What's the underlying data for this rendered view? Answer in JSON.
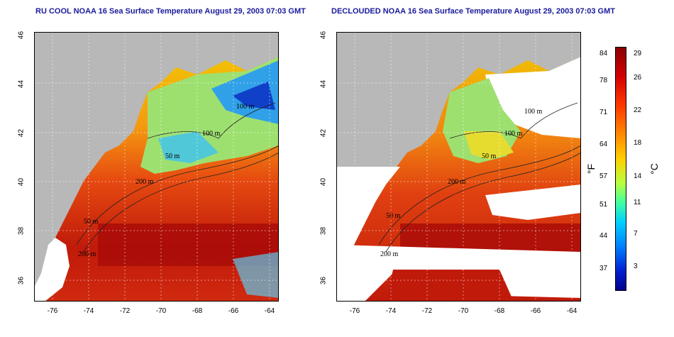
{
  "left_panel": {
    "title": "RU COOL NOAA 16 Sea Surface Temperature August 29, 2003 07:03 GMT"
  },
  "right_panel": {
    "title": "DECLOUDED NOAA 16 Sea Surface Temperature August 29, 2003 07:03 GMT"
  },
  "axes": {
    "lat_ticks": [
      "46",
      "44",
      "42",
      "40",
      "38",
      "36"
    ],
    "lon_ticks": [
      "-76",
      "-74",
      "-72",
      "-70",
      "-68",
      "-66",
      "-64"
    ]
  },
  "contour_labels": {
    "left": [
      "100 m",
      "100 m",
      "50 m",
      "200 m",
      "50 m",
      "200 m"
    ],
    "right": [
      "100 m",
      "100 m",
      "50 m",
      "200 m",
      "50 m",
      "200 m"
    ]
  },
  "colorbar": {
    "fahrenheit_label": "°F",
    "celsius_label": "°C",
    "fahrenheit_ticks": [
      "84",
      "78",
      "71",
      "64",
      "57",
      "51",
      "44",
      "37"
    ],
    "celsius_ticks": [
      "29",
      "26",
      "22",
      "18",
      "14",
      "11",
      "7",
      "3"
    ]
  },
  "colors": {
    "land": "#b8b8b8",
    "no_data": "#ffffff",
    "title_text": "#1a1a9c"
  }
}
